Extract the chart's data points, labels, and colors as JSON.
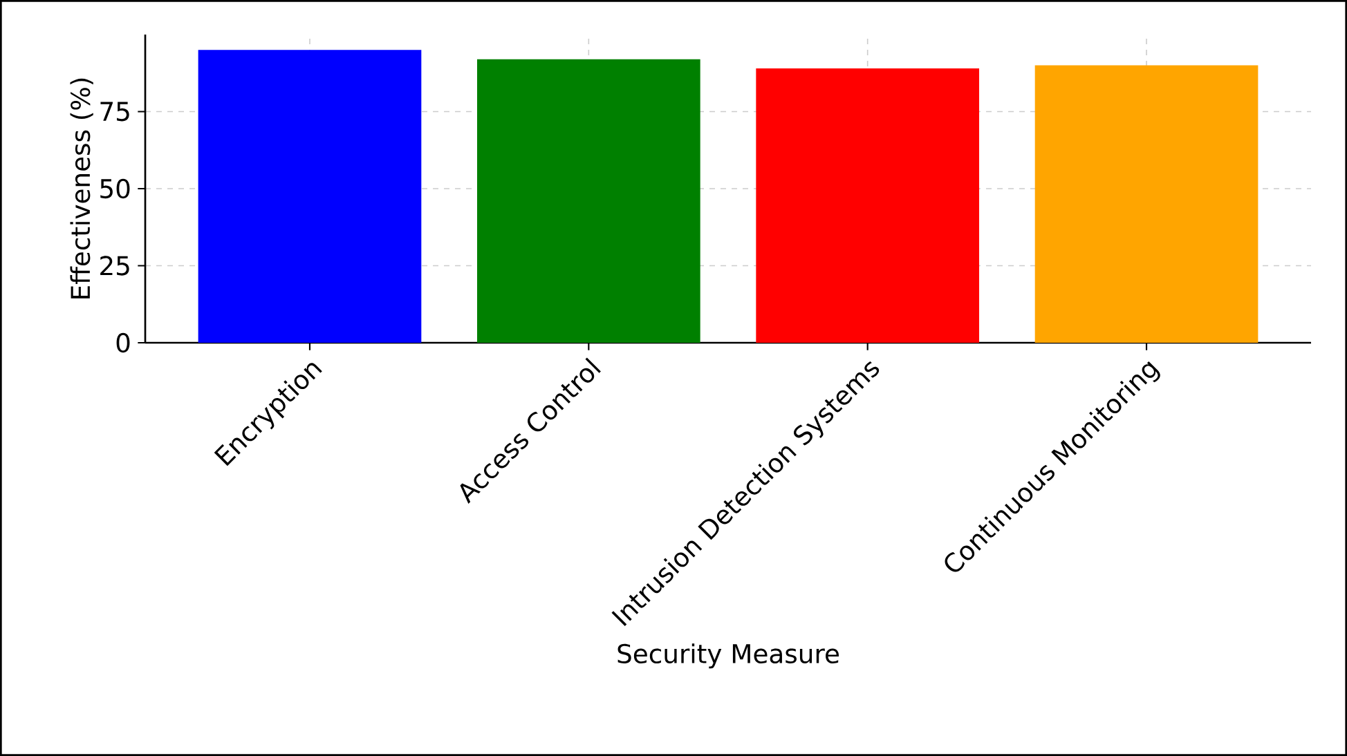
{
  "chart_data": {
    "type": "bar",
    "xlabel": "Security Measure",
    "ylabel": "Effectiveness (%)",
    "categories": [
      "Encryption",
      "Access Control",
      "Intrusion Detection Systems",
      "Continuous Monitoring"
    ],
    "values": [
      95,
      92,
      89,
      90
    ],
    "colors": [
      "#0000ff",
      "#008000",
      "#ff0000",
      "#ffa500"
    ],
    "ylim": [
      0,
      100
    ],
    "yticks": [
      0,
      25,
      50,
      75
    ],
    "grid": true
  }
}
